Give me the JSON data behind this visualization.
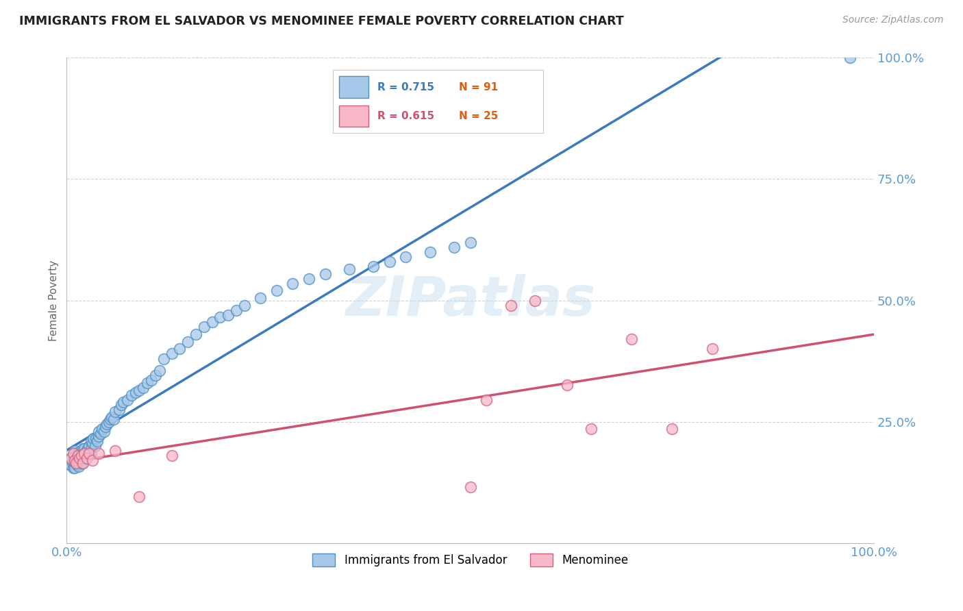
{
  "title": "IMMIGRANTS FROM EL SALVADOR VS MENOMINEE FEMALE POVERTY CORRELATION CHART",
  "source_text": "Source: ZipAtlas.com",
  "ylabel": "Female Poverty",
  "legend_label1": "Immigrants from El Salvador",
  "legend_label2": "Menominee",
  "R1": 0.715,
  "N1": 91,
  "R2": 0.615,
  "N2": 25,
  "blue_color": "#a8c8e8",
  "blue_edge_color": "#4a90c4",
  "blue_line_color": "#3a7abf",
  "pink_color": "#f8b8c8",
  "pink_edge_color": "#d46080",
  "pink_line_color": "#d05070",
  "title_color": "#222222",
  "y_tick_color": "#5b9bd5",
  "x_tick_color": "#5b9bd5",
  "N_color": "#e05a10",
  "watermark": "ZIPatlas",
  "blue_scatter_x": [
    0.005,
    0.006,
    0.007,
    0.008,
    0.009,
    0.01,
    0.01,
    0.01,
    0.01,
    0.01,
    0.01,
    0.01,
    0.012,
    0.013,
    0.014,
    0.015,
    0.015,
    0.015,
    0.015,
    0.015,
    0.016,
    0.018,
    0.019,
    0.02,
    0.02,
    0.02,
    0.021,
    0.022,
    0.022,
    0.023,
    0.024,
    0.025,
    0.026,
    0.027,
    0.028,
    0.03,
    0.03,
    0.03,
    0.032,
    0.033,
    0.035,
    0.036,
    0.038,
    0.04,
    0.04,
    0.042,
    0.044,
    0.046,
    0.048,
    0.05,
    0.052,
    0.054,
    0.056,
    0.058,
    0.06,
    0.065,
    0.068,
    0.07,
    0.075,
    0.08,
    0.085,
    0.09,
    0.095,
    0.1,
    0.105,
    0.11,
    0.115,
    0.12,
    0.13,
    0.14,
    0.15,
    0.16,
    0.17,
    0.18,
    0.19,
    0.2,
    0.21,
    0.22,
    0.24,
    0.26,
    0.28,
    0.3,
    0.32,
    0.35,
    0.38,
    0.4,
    0.42,
    0.45,
    0.48,
    0.5,
    0.97
  ],
  "blue_scatter_y": [
    0.16,
    0.175,
    0.165,
    0.155,
    0.18,
    0.17,
    0.185,
    0.165,
    0.175,
    0.19,
    0.155,
    0.168,
    0.172,
    0.16,
    0.178,
    0.162,
    0.172,
    0.182,
    0.158,
    0.188,
    0.175,
    0.165,
    0.17,
    0.18,
    0.195,
    0.165,
    0.185,
    0.175,
    0.195,
    0.185,
    0.175,
    0.19,
    0.195,
    0.185,
    0.2,
    0.195,
    0.21,
    0.185,
    0.205,
    0.215,
    0.2,
    0.215,
    0.21,
    0.22,
    0.23,
    0.225,
    0.235,
    0.23,
    0.24,
    0.245,
    0.25,
    0.255,
    0.26,
    0.255,
    0.27,
    0.275,
    0.285,
    0.29,
    0.295,
    0.305,
    0.31,
    0.315,
    0.32,
    0.33,
    0.335,
    0.345,
    0.355,
    0.38,
    0.39,
    0.4,
    0.415,
    0.43,
    0.445,
    0.455,
    0.465,
    0.47,
    0.48,
    0.49,
    0.505,
    0.52,
    0.535,
    0.545,
    0.555,
    0.565,
    0.57,
    0.58,
    0.59,
    0.6,
    0.61,
    0.62,
    1.0
  ],
  "pink_scatter_x": [
    0.005,
    0.008,
    0.01,
    0.012,
    0.014,
    0.016,
    0.018,
    0.02,
    0.022,
    0.025,
    0.028,
    0.032,
    0.04,
    0.06,
    0.09,
    0.13,
    0.5,
    0.52,
    0.55,
    0.58,
    0.62,
    0.65,
    0.7,
    0.75,
    0.8
  ],
  "pink_scatter_y": [
    0.175,
    0.185,
    0.17,
    0.165,
    0.18,
    0.175,
    0.18,
    0.165,
    0.185,
    0.175,
    0.185,
    0.17,
    0.185,
    0.19,
    0.095,
    0.18,
    0.115,
    0.295,
    0.49,
    0.5,
    0.325,
    0.235,
    0.42,
    0.235,
    0.4
  ],
  "xlim": [
    0.0,
    1.0
  ],
  "ylim": [
    0.0,
    1.0
  ],
  "y_ticks": [
    0.0,
    0.25,
    0.5,
    0.75,
    1.0
  ],
  "y_tick_labels": [
    "0%",
    "25.0%",
    "50.0%",
    "75.0%",
    "100.0%"
  ]
}
